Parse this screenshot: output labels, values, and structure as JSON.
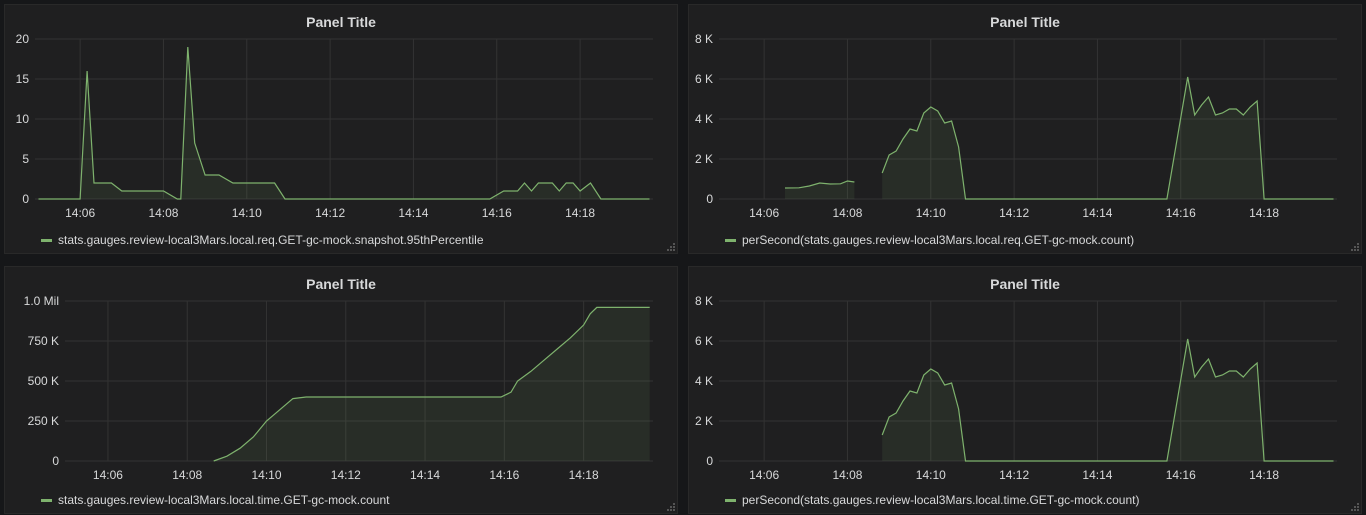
{
  "colors": {
    "series": "#7eb26d",
    "grid": "#333333",
    "background": "#1f1f20"
  },
  "icons": {
    "resize": "resize-handle-icon"
  },
  "panels": [
    {
      "title": "Panel Title",
      "legend": "stats.gauges.review-local3Mars.local.req.GET-gc-mock.snapshot.95thPercentile",
      "chart_data": {
        "type": "line",
        "title": "Panel Title",
        "x_ticks": [
          "14:06",
          "14:08",
          "14:10",
          "14:12",
          "14:14",
          "14:16",
          "14:18"
        ],
        "xlim": [
          "14:04:55",
          "14:19:45"
        ],
        "y_ticks": [
          "0",
          "5",
          "10",
          "15",
          "20"
        ],
        "ylim": [
          0,
          20
        ],
        "grid": true,
        "legend_position": "bottom",
        "series": [
          {
            "name": "stats.gauges.review-local3Mars.local.req.GET-gc-mock.snapshot.95thPercentile",
            "x": [
              "14:05:00",
              "14:06:00",
              "14:06:10",
              "14:06:20",
              "14:06:30",
              "14:06:45",
              "14:07:00",
              "14:07:20",
              "14:07:40",
              "14:08:00",
              "14:08:20",
              "14:08:25",
              "14:08:35",
              "14:08:45",
              "14:09:00",
              "14:09:20",
              "14:09:40",
              "14:10:00",
              "14:10:20",
              "14:10:40",
              "14:10:55",
              "14:11:30",
              "14:12:00",
              "14:13:00",
              "14:14:00",
              "14:15:00",
              "14:15:50",
              "14:16:10",
              "14:16:30",
              "14:16:40",
              "14:16:50",
              "14:17:00",
              "14:17:20",
              "14:17:30",
              "14:17:40",
              "14:17:50",
              "14:18:00",
              "14:18:15",
              "14:18:30",
              "14:19:00",
              "14:19:40"
            ],
            "values": [
              0,
              0,
              16,
              2,
              2,
              2,
              1,
              1,
              1,
              1,
              0,
              0,
              19,
              7,
              3,
              3,
              2,
              2,
              2,
              2,
              0,
              0,
              0,
              0,
              0,
              0,
              0,
              1,
              1,
              2,
              1,
              2,
              2,
              1,
              2,
              2,
              1,
              2,
              0,
              0,
              0
            ]
          }
        ]
      }
    },
    {
      "title": "Panel Title",
      "legend": "perSecond(stats.gauges.review-local3Mars.local.req.GET-gc-mock.count)",
      "chart_data": {
        "type": "area",
        "title": "Panel Title",
        "x_ticks": [
          "14:06",
          "14:08",
          "14:10",
          "14:12",
          "14:14",
          "14:16",
          "14:18"
        ],
        "xlim": [
          "14:04:55",
          "14:19:45"
        ],
        "y_ticks": [
          "0",
          "2 K",
          "4 K",
          "6 K",
          "8 K"
        ],
        "ylim": [
          0,
          8000
        ],
        "grid": true,
        "legend_position": "bottom",
        "series": [
          {
            "name": "perSecond(stats.gauges.review-local3Mars.local.req.GET-gc-mock.count)",
            "segments": [
              {
                "x": [
                  "14:06:30",
                  "14:06:50",
                  "14:07:05",
                  "14:07:20",
                  "14:07:35",
                  "14:07:50",
                  "14:08:00",
                  "14:08:10"
                ],
                "values": [
                  550,
                  560,
                  650,
                  800,
                  750,
                  760,
                  900,
                  850
                ]
              },
              {
                "x": [
                  "14:08:50",
                  "14:09:00",
                  "14:09:10",
                  "14:09:20",
                  "14:09:30",
                  "14:09:40",
                  "14:09:50",
                  "14:10:00",
                  "14:10:10",
                  "14:10:20",
                  "14:10:30",
                  "14:10:40",
                  "14:10:50",
                  "14:11:00",
                  "14:12:00",
                  "14:13:00",
                  "14:14:00",
                  "14:15:00",
                  "14:15:40",
                  "14:16:10",
                  "14:16:20",
                  "14:16:30",
                  "14:16:40",
                  "14:16:50",
                  "14:17:00",
                  "14:17:10",
                  "14:17:20",
                  "14:17:30",
                  "14:17:40",
                  "14:17:50",
                  "14:18:00",
                  "14:18:15",
                  "14:19:40"
                ],
                "values": [
                  1300,
                  2200,
                  2400,
                  3000,
                  3500,
                  3400,
                  4300,
                  4600,
                  4400,
                  3800,
                  3900,
                  2600,
                  0,
                  0,
                  0,
                  0,
                  0,
                  0,
                  0,
                  6100,
                  4200,
                  4700,
                  5100,
                  4200,
                  4300,
                  4500,
                  4500,
                  4200,
                  4600,
                  4900,
                  0,
                  0,
                  0
                ]
              }
            ]
          }
        ]
      }
    },
    {
      "title": "Panel Title",
      "legend": "stats.gauges.review-local3Mars.local.time.GET-gc-mock.count",
      "chart_data": {
        "type": "area",
        "title": "Panel Title",
        "x_ticks": [
          "14:06",
          "14:08",
          "14:10",
          "14:12",
          "14:14",
          "14:16",
          "14:18"
        ],
        "xlim": [
          "14:04:55",
          "14:19:45"
        ],
        "y_ticks": [
          "0",
          "250 K",
          "500 K",
          "750 K",
          "1.0 Mil"
        ],
        "ylim": [
          0,
          1000000
        ],
        "grid": true,
        "legend_position": "bottom",
        "series": [
          {
            "name": "stats.gauges.review-local3Mars.local.time.GET-gc-mock.count",
            "x": [
              "14:08:40",
              "14:09:00",
              "14:09:20",
              "14:09:40",
              "14:10:00",
              "14:10:20",
              "14:10:40",
              "14:11:00",
              "14:12:00",
              "14:13:00",
              "14:14:00",
              "14:15:00",
              "14:15:55",
              "14:16:10",
              "14:16:20",
              "14:16:40",
              "14:17:00",
              "14:17:20",
              "14:17:40",
              "14:18:00",
              "14:18:10",
              "14:18:20",
              "14:19:00",
              "14:19:40"
            ],
            "values": [
              0,
              30000,
              80000,
              150000,
              250000,
              320000,
              390000,
              400000,
              400000,
              400000,
              400000,
              400000,
              400000,
              430000,
              500000,
              560000,
              630000,
              700000,
              770000,
              850000,
              920000,
              960000,
              960000,
              960000
            ]
          }
        ]
      }
    },
    {
      "title": "Panel Title",
      "legend": "perSecond(stats.gauges.review-local3Mars.local.time.GET-gc-mock.count)",
      "chart_data": {
        "type": "area",
        "title": "Panel Title",
        "x_ticks": [
          "14:06",
          "14:08",
          "14:10",
          "14:12",
          "14:14",
          "14:16",
          "14:18"
        ],
        "xlim": [
          "14:04:55",
          "14:19:45"
        ],
        "y_ticks": [
          "0",
          "2 K",
          "4 K",
          "6 K",
          "8 K"
        ],
        "ylim": [
          0,
          8000
        ],
        "grid": true,
        "legend_position": "bottom",
        "series": [
          {
            "name": "perSecond(stats.gauges.review-local3Mars.local.time.GET-gc-mock.count)",
            "x": [
              "14:08:50",
              "14:09:00",
              "14:09:10",
              "14:09:20",
              "14:09:30",
              "14:09:40",
              "14:09:50",
              "14:10:00",
              "14:10:10",
              "14:10:20",
              "14:10:30",
              "14:10:40",
              "14:10:50",
              "14:11:00",
              "14:12:00",
              "14:13:00",
              "14:14:00",
              "14:15:00",
              "14:15:40",
              "14:16:10",
              "14:16:20",
              "14:16:30",
              "14:16:40",
              "14:16:50",
              "14:17:00",
              "14:17:10",
              "14:17:20",
              "14:17:30",
              "14:17:40",
              "14:17:50",
              "14:18:00",
              "14:18:15",
              "14:19:40"
            ],
            "values": [
              1300,
              2200,
              2400,
              3000,
              3500,
              3400,
              4300,
              4600,
              4400,
              3800,
              3900,
              2600,
              0,
              0,
              0,
              0,
              0,
              0,
              0,
              6100,
              4200,
              4700,
              5100,
              4200,
              4300,
              4500,
              4500,
              4200,
              4600,
              4900,
              0,
              0,
              0
            ]
          }
        ]
      }
    }
  ]
}
